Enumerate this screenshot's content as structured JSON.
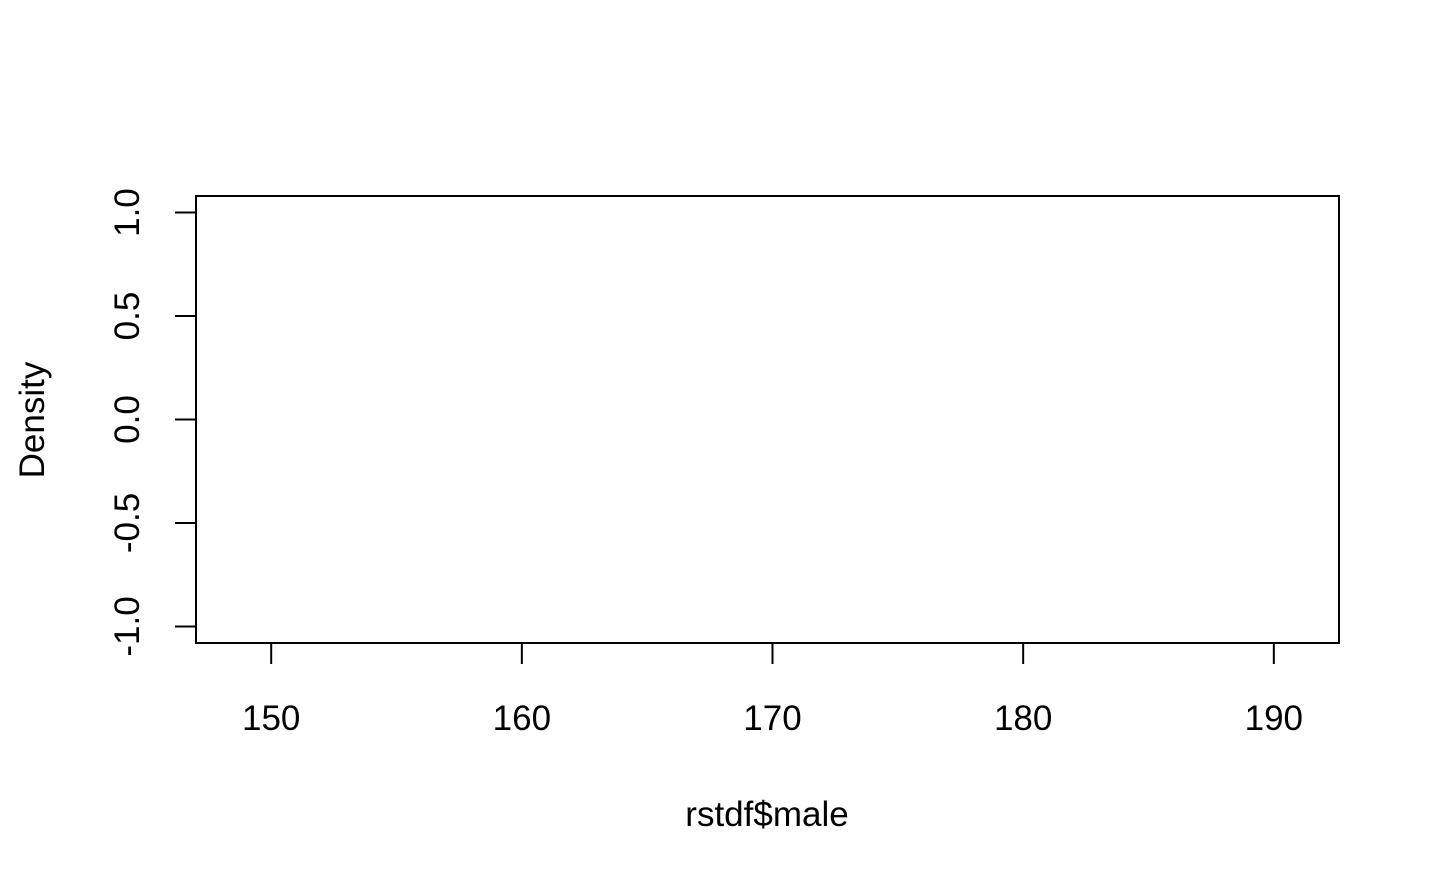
{
  "chart_data": {
    "type": "line",
    "title": "",
    "xlabel": "rstdf$male",
    "ylabel": "Density",
    "xlim": [
      147,
      192.6
    ],
    "ylim": [
      -1.08,
      1.08
    ],
    "x_ticks": [
      150,
      160,
      170,
      180,
      190
    ],
    "x_tick_labels": [
      "150",
      "160",
      "170",
      "180",
      "190"
    ],
    "y_ticks": [
      -1.0,
      -0.5,
      0.0,
      0.5,
      1.0
    ],
    "y_tick_labels": [
      "-1.0",
      "-0.5",
      "0.0",
      "0.5",
      "1.0"
    ],
    "series": [],
    "grid": false,
    "legend": "none",
    "colors": {
      "axis": "#000000",
      "background": "#ffffff"
    }
  }
}
